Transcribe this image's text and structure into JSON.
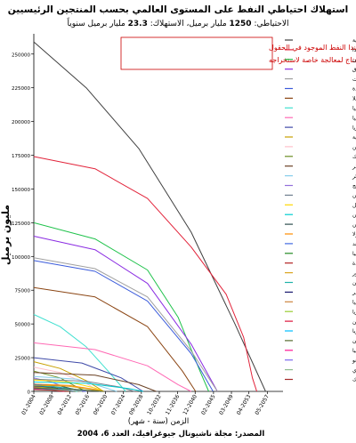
{
  "chart_data": {
    "type": "line",
    "title": "استهلاك احتياطي النفط على المستوى العالمي بحسب المنتجين الرئيسيين",
    "subtitle": {
      "prefix": "الاحتياطي: ",
      "reserve": "1250",
      "middle": " مليار برميل، الاستهلاك: ",
      "consumption": "23.3",
      "suffix": " مليار برميل سنوياً"
    },
    "ylabel": "مليون برميل",
    "xlabel": "الزمن (سنة - شهر)",
    "source": "المصدر: مجلة ناشيونال جيوغرافيك، العدد 6، 2004",
    "annotation": "يتضمن احتياطي كندا النفط الموجود في الحقول الرملية، وهو يحتاج لمعالجة خاصة لاستخراجه",
    "annotation_lines": [
      "يتضمن احتياطي كندا النفط الموجود في الحقول",
      "الرملية، وهو يحتاج لمعالجة خاصة لاستخراجه"
    ],
    "ylim": [
      0,
      265000
    ],
    "yticks": [
      0,
      25000,
      50000,
      75000,
      100000,
      125000,
      150000,
      175000,
      200000,
      225000,
      250000
    ],
    "xlim": [
      2004.0,
      2061.0
    ],
    "xticks": [
      {
        "v": 2004.0,
        "label": "01-2004"
      },
      {
        "v": 2008.1,
        "label": "02-2008"
      },
      {
        "v": 2012.2,
        "label": "04-2012"
      },
      {
        "v": 2016.3,
        "label": "05-2016"
      },
      {
        "v": 2020.4,
        "label": "06-2020"
      },
      {
        "v": 2024.5,
        "label": "07-2024"
      },
      {
        "v": 2028.6,
        "label": "09-2028"
      },
      {
        "v": 2032.7,
        "label": "10-2032"
      },
      {
        "v": 2036.9,
        "label": "11-2036"
      },
      {
        "v": 2040.9,
        "label": "12-2040"
      },
      {
        "v": 2045.1,
        "label": "02-2045"
      },
      {
        "v": 2049.2,
        "label": "03-2049"
      },
      {
        "v": 2053.2,
        "label": "04-2053"
      },
      {
        "v": 2057.4,
        "label": "05-2057"
      }
    ],
    "grid": false,
    "legend_position": "right",
    "series": [
      {
        "name": "المملكة العربية السعودية",
        "color": "#404040",
        "points": [
          [
            2004,
            259000
          ],
          [
            2016,
            225000
          ],
          [
            2028,
            180000
          ],
          [
            2040,
            118000
          ],
          [
            2050,
            50000
          ],
          [
            2057,
            0
          ]
        ]
      },
      {
        "name": "كندا",
        "color": "#e2233a",
        "points": [
          [
            2004,
            174000
          ],
          [
            2018,
            165000
          ],
          [
            2030,
            143000
          ],
          [
            2040,
            107000
          ],
          [
            2048,
            72000
          ],
          [
            2052,
            40000
          ],
          [
            2054,
            10000
          ],
          [
            2055,
            0
          ]
        ]
      },
      {
        "name": "إيران",
        "color": "#1ec24a",
        "points": [
          [
            2004,
            125000
          ],
          [
            2018,
            113000
          ],
          [
            2030,
            90000
          ],
          [
            2037,
            55000
          ],
          [
            2042,
            15000
          ],
          [
            2044,
            0
          ]
        ]
      },
      {
        "name": "العراق",
        "color": "#8a2be2",
        "points": [
          [
            2004,
            115000
          ],
          [
            2018,
            105000
          ],
          [
            2030,
            80000
          ],
          [
            2040,
            35000
          ],
          [
            2046,
            0
          ]
        ]
      },
      {
        "name": "الكويت",
        "color": "#a0a0a0",
        "points": [
          [
            2004,
            99000
          ],
          [
            2018,
            91000
          ],
          [
            2030,
            70000
          ],
          [
            2040,
            30000
          ],
          [
            2046,
            0
          ]
        ]
      },
      {
        "name": "الإمارات العربية المتحدة",
        "color": "#3b5bdb",
        "points": [
          [
            2004,
            97000
          ],
          [
            2018,
            89000
          ],
          [
            2030,
            67000
          ],
          [
            2040,
            28000
          ],
          [
            2045,
            0
          ]
        ]
      },
      {
        "name": "فنزويلا",
        "color": "#8b4513",
        "points": [
          [
            2004,
            77000
          ],
          [
            2018,
            70000
          ],
          [
            2030,
            48000
          ],
          [
            2038,
            15000
          ],
          [
            2041,
            0
          ]
        ]
      },
      {
        "name": "روسيا",
        "color": "#40e0d0",
        "points": [
          [
            2004,
            57000
          ],
          [
            2010,
            48000
          ],
          [
            2016,
            33000
          ],
          [
            2021,
            15000
          ],
          [
            2025,
            0
          ]
        ]
      },
      {
        "name": "ليبيا",
        "color": "#ff69b4",
        "points": [
          [
            2004,
            36000
          ],
          [
            2018,
            31000
          ],
          [
            2030,
            19000
          ],
          [
            2037,
            5000
          ],
          [
            2040,
            0
          ]
        ]
      },
      {
        "name": "نيجيريا",
        "color": "#3f4aa8",
        "points": [
          [
            2004,
            25000
          ],
          [
            2015,
            21000
          ],
          [
            2024,
            10000
          ],
          [
            2029,
            0
          ]
        ]
      },
      {
        "name": "الولايات المتحدة الأمريكية",
        "color": "#c8a000",
        "points": [
          [
            2004,
            22000
          ],
          [
            2010,
            17000
          ],
          [
            2016,
            8000
          ],
          [
            2020,
            0
          ]
        ]
      },
      {
        "name": "الصين",
        "color": "#ffc0cb",
        "points": [
          [
            2004,
            18000
          ],
          [
            2010,
            14000
          ],
          [
            2016,
            6000
          ],
          [
            2019,
            0
          ]
        ]
      },
      {
        "name": "المكسيك",
        "color": "#6b8e23",
        "points": [
          [
            2004,
            15000
          ],
          [
            2010,
            10000
          ],
          [
            2014,
            3000
          ],
          [
            2016,
            0
          ]
        ]
      },
      {
        "name": "قطر",
        "color": "#6b4226",
        "points": [
          [
            2004,
            14000
          ],
          [
            2018,
            12000
          ],
          [
            2028,
            5000
          ],
          [
            2032,
            0
          ]
        ]
      },
      {
        "name": "الجزائر",
        "color": "#87ceeb",
        "points": [
          [
            2004,
            11000
          ],
          [
            2014,
            9000
          ],
          [
            2020,
            3000
          ],
          [
            2023,
            0
          ]
        ]
      },
      {
        "name": "النرويج",
        "color": "#9370db",
        "points": [
          [
            2004,
            10000
          ],
          [
            2008,
            7000
          ],
          [
            2012,
            2000
          ],
          [
            2013,
            0
          ]
        ]
      },
      {
        "name": "كازاخستان",
        "color": "#708090",
        "points": [
          [
            2004,
            9000
          ],
          [
            2016,
            7500
          ],
          [
            2024,
            3000
          ],
          [
            2027,
            0
          ]
        ]
      },
      {
        "name": "البرازيل",
        "color": "#ffd700",
        "points": [
          [
            2004,
            8500
          ],
          [
            2012,
            7000
          ],
          [
            2018,
            2500
          ],
          [
            2020,
            0
          ]
        ]
      },
      {
        "name": "أذربيجان",
        "color": "#00ced1",
        "points": [
          [
            2004,
            7000
          ],
          [
            2016,
            6000
          ],
          [
            2026,
            2000
          ],
          [
            2029,
            0
          ]
        ]
      },
      {
        "name": "عمان",
        "color": "#2f4f4f",
        "points": [
          [
            2004,
            5500
          ],
          [
            2010,
            4000
          ],
          [
            2014,
            1000
          ],
          [
            2015,
            0
          ]
        ]
      },
      {
        "name": "أنغولا",
        "color": "#ff8c00",
        "points": [
          [
            2004,
            5400
          ],
          [
            2012,
            4500
          ],
          [
            2018,
            1500
          ],
          [
            2020,
            0
          ]
        ]
      },
      {
        "name": "الهند",
        "color": "#4169e1",
        "points": [
          [
            2004,
            5300
          ],
          [
            2008,
            4000
          ],
          [
            2012,
            1200
          ],
          [
            2013,
            0
          ]
        ]
      },
      {
        "name": "إندونيسيا",
        "color": "#228b22",
        "points": [
          [
            2004,
            4700
          ],
          [
            2008,
            3500
          ],
          [
            2011,
            1000
          ],
          [
            2012,
            0
          ]
        ]
      },
      {
        "name": "المملكة المتحدة",
        "color": "#b22222",
        "points": [
          [
            2004,
            4500
          ],
          [
            2007,
            3000
          ],
          [
            2009,
            800
          ],
          [
            2010,
            0
          ]
        ]
      },
      {
        "name": "الإكوادور",
        "color": "#daa520",
        "points": [
          [
            2004,
            4600
          ],
          [
            2012,
            3800
          ],
          [
            2018,
            1200
          ],
          [
            2020,
            0
          ]
        ]
      },
      {
        "name": "اليمن",
        "color": "#20b2aa",
        "points": [
          [
            2004,
            4000
          ],
          [
            2010,
            3000
          ],
          [
            2015,
            800
          ],
          [
            2016,
            0
          ]
        ]
      },
      {
        "name": "مصر",
        "color": "#191970",
        "points": [
          [
            2004,
            3700
          ],
          [
            2008,
            2800
          ],
          [
            2012,
            800
          ],
          [
            2013,
            0
          ]
        ]
      },
      {
        "name": "أستراليا",
        "color": "#cd853f",
        "points": [
          [
            2004,
            3500
          ],
          [
            2008,
            2500
          ],
          [
            2011,
            700
          ],
          [
            2012,
            0
          ]
        ]
      },
      {
        "name": "ماليزيا",
        "color": "#9acd32",
        "points": [
          [
            2004,
            3000
          ],
          [
            2009,
            2200
          ],
          [
            2013,
            600
          ],
          [
            2014,
            0
          ]
        ]
      },
      {
        "name": "الأرجنتين",
        "color": "#dc143c",
        "points": [
          [
            2004,
            2800
          ],
          [
            2007,
            2000
          ],
          [
            2010,
            500
          ],
          [
            2011,
            0
          ]
        ]
      },
      {
        "name": "سوريا",
        "color": "#00bfff",
        "points": [
          [
            2004,
            2500
          ],
          [
            2009,
            1800
          ],
          [
            2013,
            500
          ],
          [
            2014,
            0
          ]
        ]
      },
      {
        "name": "الغابون",
        "color": "#556b2f",
        "points": [
          [
            2004,
            2400
          ],
          [
            2012,
            1800
          ],
          [
            2018,
            500
          ],
          [
            2020,
            0
          ]
        ]
      },
      {
        "name": "كولومبيا",
        "color": "#ff1493",
        "points": [
          [
            2004,
            1800
          ],
          [
            2007,
            1300
          ],
          [
            2010,
            300
          ],
          [
            2011,
            0
          ]
        ]
      },
      {
        "name": "الكونغو",
        "color": "#7b68ee",
        "points": [
          [
            2004,
            1500
          ],
          [
            2010,
            1100
          ],
          [
            2015,
            300
          ],
          [
            2016,
            0
          ]
        ]
      },
      {
        "name": "بروناي",
        "color": "#8fbc8f",
        "points": [
          [
            2004,
            1350
          ],
          [
            2010,
            1000
          ],
          [
            2014,
            250
          ],
          [
            2015,
            0
          ]
        ]
      },
      {
        "name": "الدنمارك",
        "color": "#a52a2a",
        "points": [
          [
            2004,
            1300
          ],
          [
            2008,
            900
          ],
          [
            2011,
            200
          ],
          [
            2012,
            0
          ]
        ]
      }
    ]
  }
}
